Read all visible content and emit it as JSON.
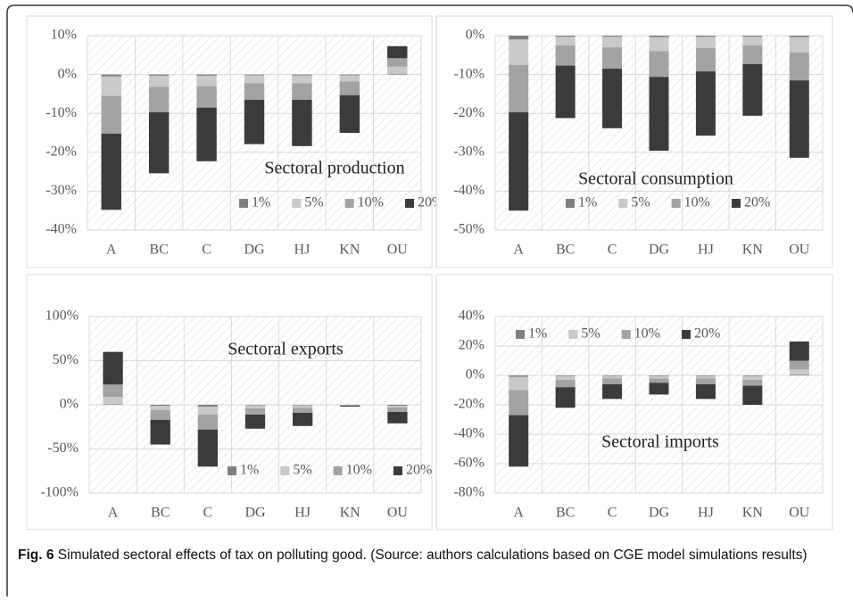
{
  "chart_data": [
    {
      "type": "bar",
      "stacked": true,
      "annotation": "Sectoral production",
      "legend": "lower right",
      "categories": [
        "A",
        "BC",
        "C",
        "DG",
        "HJ",
        "KN",
        "OU"
      ],
      "ylim": [
        -40,
        10
      ],
      "yticks": [
        {
          "value": -40,
          "label": "-40%"
        },
        {
          "value": -30,
          "label": "-30%"
        },
        {
          "value": -20,
          "label": "-20%"
        },
        {
          "value": -10,
          "label": "-10%"
        },
        {
          "value": 0,
          "label": "0%"
        },
        {
          "value": 10,
          "label": "10%"
        }
      ],
      "grid": true,
      "series": [
        {
          "name": "1%",
          "color": "#7f7f7f",
          "values": [
            -0.5,
            -0.3,
            -0.3,
            -0.2,
            -0.2,
            -0.2,
            0.2
          ]
        },
        {
          "name": "5%",
          "color": "#c9c9c9",
          "values": [
            -5,
            -2.9,
            -2.7,
            -2,
            -2,
            -1.6,
            1.8
          ]
        },
        {
          "name": "10%",
          "color": "#a3a3a3",
          "values": [
            -9.7,
            -6.5,
            -5.5,
            -4.3,
            -4.3,
            -3.5,
            2.2
          ]
        },
        {
          "name": "20%",
          "color": "#3b3b3b",
          "values": [
            -19.6,
            -15.7,
            -13.8,
            -11.4,
            -11.9,
            -9.7,
            3.1
          ]
        }
      ]
    },
    {
      "type": "bar",
      "stacked": true,
      "annotation": "Sectoral consumption",
      "legend": "lower left",
      "categories": [
        "A",
        "BC",
        "C",
        "DG",
        "HJ",
        "KN",
        "OU"
      ],
      "ylim": [
        -50,
        0
      ],
      "yticks": [
        {
          "value": -50,
          "label": "-50%"
        },
        {
          "value": -40,
          "label": "-40%"
        },
        {
          "value": -30,
          "label": "-30%"
        },
        {
          "value": -20,
          "label": "-20%"
        },
        {
          "value": -10,
          "label": "-10%"
        },
        {
          "value": 0,
          "label": "0%"
        }
      ],
      "grid": true,
      "series": [
        {
          "name": "1%",
          "color": "#7f7f7f",
          "values": [
            -1,
            -0.3,
            -0.3,
            -0.4,
            -0.3,
            -0.3,
            -0.4
          ]
        },
        {
          "name": "5%",
          "color": "#c9c9c9",
          "values": [
            -6.5,
            -2.2,
            -2.7,
            -3.6,
            -2.9,
            -2.2,
            -3.9
          ]
        },
        {
          "name": "10%",
          "color": "#a3a3a3",
          "values": [
            -12.2,
            -5.2,
            -5.5,
            -6.6,
            -6,
            -4.8,
            -7.2
          ]
        },
        {
          "name": "20%",
          "color": "#3b3b3b",
          "values": [
            -25.3,
            -13.5,
            -15.3,
            -19,
            -16.5,
            -13.3,
            -19.9
          ]
        }
      ]
    },
    {
      "type": "bar",
      "stacked": true,
      "annotation": "Sectoral exports",
      "legend": "lower right",
      "categories": [
        "A",
        "BC",
        "C",
        "DG",
        "HJ",
        "KN",
        "OU"
      ],
      "ylim": [
        -100,
        100
      ],
      "yticks": [
        {
          "value": -100,
          "label": "-100%"
        },
        {
          "value": -50,
          "label": "-50%"
        },
        {
          "value": 0,
          "label": "0%"
        },
        {
          "value": 50,
          "label": "50%"
        },
        {
          "value": 100,
          "label": "100%"
        }
      ],
      "grid": true,
      "series": [
        {
          "name": "1%",
          "color": "#7f7f7f",
          "values": [
            0.5,
            -1,
            -2,
            -0.5,
            -0.5,
            -0.2,
            -1
          ]
        },
        {
          "name": "5%",
          "color": "#c9c9c9",
          "values": [
            8.5,
            -5,
            -9,
            -3.5,
            -3,
            -0.3,
            -2
          ]
        },
        {
          "name": "10%",
          "color": "#a3a3a3",
          "values": [
            14,
            -11,
            -17,
            -7,
            -5.5,
            -0.5,
            -5
          ]
        },
        {
          "name": "20%",
          "color": "#3b3b3b",
          "values": [
            37,
            -28,
            -42,
            -16,
            -15,
            -1,
            -13
          ]
        }
      ]
    },
    {
      "type": "bar",
      "stacked": true,
      "annotation": "Sectoral imports",
      "legend": "upper left",
      "categories": [
        "A",
        "BC",
        "C",
        "DG",
        "HJ",
        "KN",
        "OU"
      ],
      "ylim": [
        -80,
        40
      ],
      "yticks": [
        {
          "value": -80,
          "label": "-80%"
        },
        {
          "value": -60,
          "label": "-60%"
        },
        {
          "value": -40,
          "label": "-40%"
        },
        {
          "value": -20,
          "label": "-20%"
        },
        {
          "value": 0,
          "label": "0%"
        },
        {
          "value": 20,
          "label": "20%"
        },
        {
          "value": 40,
          "label": "40%"
        }
      ],
      "grid": true,
      "series": [
        {
          "name": "1%",
          "color": "#7f7f7f",
          "values": [
            -1,
            -0.5,
            -0.5,
            -0.5,
            -0.5,
            -0.5,
            0.5
          ]
        },
        {
          "name": "5%",
          "color": "#c9c9c9",
          "values": [
            -9,
            -2.5,
            -1.5,
            -1.5,
            -1.5,
            -2.5,
            3.5
          ]
        },
        {
          "name": "10%",
          "color": "#a3a3a3",
          "values": [
            -17,
            -5,
            -4,
            -3,
            -4,
            -4,
            6
          ]
        },
        {
          "name": "20%",
          "color": "#3b3b3b",
          "values": [
            -35,
            -14,
            -10,
            -8,
            -10,
            -13,
            13
          ]
        }
      ]
    }
  ],
  "caption": {
    "label": "Fig. 6",
    "text": "Simulated sectoral effects of tax on polluting good. (Source: authors calculations based on CGE model simulations results)"
  }
}
